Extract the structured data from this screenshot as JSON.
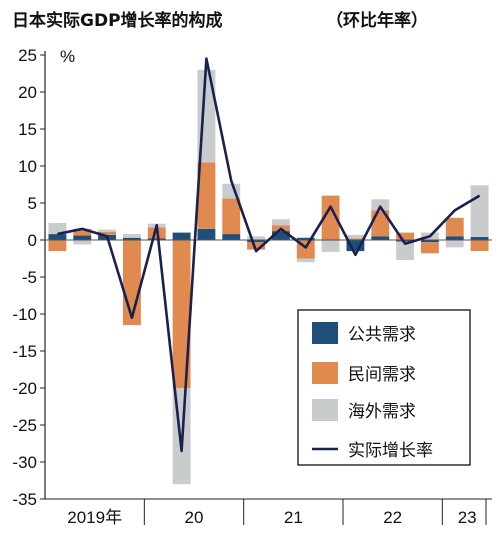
{
  "chart_data": {
    "type": "bar",
    "title": "日本实际GDP增长率的构成",
    "subtitle": "（环比年率）",
    "ylabel": "%",
    "ylim": [
      -35,
      25
    ],
    "yticks": [
      25,
      20,
      15,
      10,
      5,
      0,
      -5,
      -10,
      -15,
      -20,
      -25,
      -30,
      -35
    ],
    "x_labels": [
      "2019年",
      "20",
      "21",
      "22",
      "23"
    ],
    "grid": false,
    "legend_position": "bottom-right",
    "quarters": 18,
    "series": [
      {
        "name": "公共需求",
        "color": "#1f4e79",
        "values": [
          0.8,
          0.6,
          0.7,
          0.3,
          0.2,
          1.0,
          1.5,
          0.8,
          -0.3,
          1.2,
          0.3,
          -0.1,
          -1.5,
          0.5,
          -0.2,
          -0.3,
          0.5,
          0.4
        ]
      },
      {
        "name": "民间需求",
        "color": "#e08a4f",
        "values": [
          -1.5,
          0.9,
          0.4,
          -11.5,
          1.5,
          -20.0,
          9.0,
          4.8,
          -1.0,
          0.8,
          -2.5,
          6.0,
          0.2,
          3.5,
          1.0,
          -1.5,
          2.5,
          -1.5
        ]
      },
      {
        "name": "海外需求",
        "color": "#c8cccc",
        "values": [
          1.5,
          -0.6,
          0.3,
          0.5,
          0.5,
          -13.0,
          12.5,
          2.0,
          0.5,
          0.8,
          -0.5,
          -1.5,
          0.5,
          1.5,
          -2.5,
          1.0,
          -1.0,
          7.0
        ]
      }
    ],
    "line_series": {
      "name": "实际增长率",
      "color": "#1a2050",
      "values": [
        0.8,
        1.5,
        0.5,
        -10.5,
        2.0,
        -28.5,
        24.5,
        8.0,
        -1.5,
        1.5,
        -1.0,
        4.5,
        -2.0,
        4.5,
        -0.5,
        0.5,
        4.0,
        6.0
      ]
    }
  }
}
